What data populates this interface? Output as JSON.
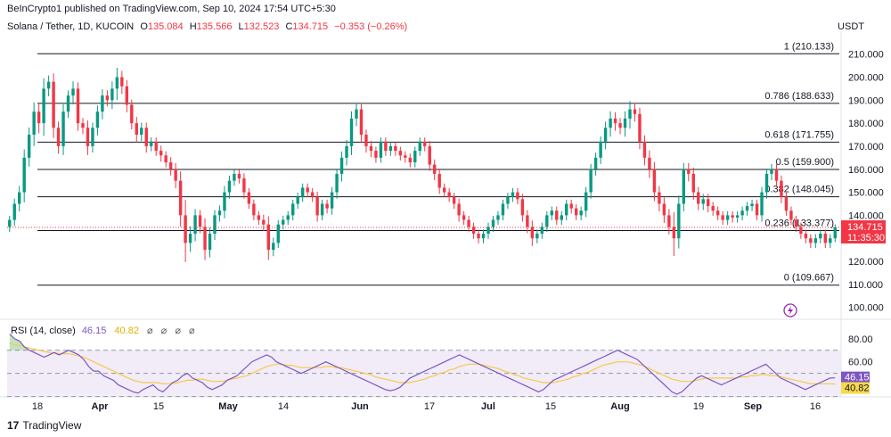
{
  "header": {
    "published": "BeInCrypto1 published on TradingView.com, Sep 10, 2024 17:54 UTC+5:30",
    "symbol": "Solana / Tether, 1D, KUCOIN",
    "o_label": "O",
    "o_value": "135.084",
    "h_label": "H",
    "h_value": "135.566",
    "l_label": "L",
    "l_value": "132.523",
    "c_label": "C",
    "c_value": "134.715",
    "change": "−0.353 (−0.26%)",
    "currency": "USDT"
  },
  "rsi_legend": {
    "label": "RSI (14, close)",
    "rsi_value": "46.15",
    "ma_value": "40.82",
    "icons": "⌀ ⌀ ⌀ ⌀"
  },
  "footer": {
    "logo_text": "TradingView",
    "logo_mark": "17"
  },
  "chart_data": [
    {
      "type": "candlestick",
      "title": "Solana / Tether, 1D, KUCOIN",
      "ylim": [
        96,
        218
      ],
      "y_ticks": [
        100,
        110,
        120,
        130,
        140,
        150,
        160,
        170,
        180,
        190,
        200,
        210
      ],
      "x_ticks": [
        "18",
        "Apr",
        "15",
        "May",
        "14",
        "Jun",
        "17",
        "Jul",
        "15",
        "Aug",
        "19",
        "Sep",
        "16"
      ],
      "price_label": "134.715",
      "countdown_label": "11:35:30",
      "up_color": "#089981",
      "down_color": "#f23645",
      "fib_levels": [
        {
          "ratio": "1",
          "value": 210.133,
          "label": "1 (210.133)"
        },
        {
          "ratio": "0.786",
          "value": 188.633,
          "label": "0.786 (188.633)"
        },
        {
          "ratio": "0.618",
          "value": 171.755,
          "label": "0.618 (171.755)"
        },
        {
          "ratio": "0.5",
          "value": 159.9,
          "label": "0.5 (159.900)"
        },
        {
          "ratio": "0.382",
          "value": 148.045,
          "label": "0.382 (148.045)"
        },
        {
          "ratio": "0.236",
          "value": 133.377,
          "label": "0.236 (133.377)"
        },
        {
          "ratio": "0",
          "value": 109.667,
          "label": "0 (109.667)"
        }
      ],
      "closes": [
        138,
        145,
        150,
        165,
        175,
        185,
        180,
        195,
        198,
        178,
        170,
        185,
        192,
        195,
        180,
        178,
        170,
        178,
        185,
        192,
        190,
        195,
        200,
        196,
        188,
        180,
        175,
        178,
        170,
        172,
        168,
        166,
        163,
        160,
        155,
        140,
        128,
        132,
        140,
        135,
        125,
        132,
        140,
        142,
        150,
        155,
        158,
        156,
        150,
        145,
        140,
        138,
        136,
        125,
        128,
        136,
        138,
        140,
        145,
        148,
        152,
        150,
        148,
        140,
        145,
        143,
        150,
        158,
        165,
        170,
        182,
        186,
        175,
        170,
        168,
        165,
        172,
        168,
        170,
        168,
        166,
        165,
        163,
        168,
        172,
        170,
        162,
        158,
        152,
        150,
        148,
        145,
        140,
        138,
        135,
        132,
        130,
        132,
        135,
        138,
        140,
        145,
        148,
        150,
        147,
        140,
        135,
        130,
        132,
        135,
        140,
        142,
        138,
        140,
        145,
        143,
        140,
        142,
        150,
        160,
        165,
        172,
        178,
        182,
        180,
        178,
        182,
        186,
        184,
        172,
        165,
        160,
        150,
        145,
        140,
        135,
        130,
        145,
        160,
        158,
        150,
        145,
        147,
        144,
        142,
        140,
        138,
        140,
        139,
        140,
        142,
        144,
        145,
        140,
        150,
        158,
        160,
        155,
        148,
        142,
        138,
        135,
        132,
        130,
        128,
        130,
        132,
        128,
        130,
        134.715
      ],
      "volatility": [
        4,
        5,
        6,
        8,
        7,
        9,
        8,
        10,
        6,
        8,
        6,
        7,
        5,
        7,
        6,
        5,
        7,
        5,
        6,
        6,
        5,
        7,
        9,
        6,
        6,
        5,
        6,
        5,
        5,
        4,
        4,
        5,
        4,
        5,
        6,
        9,
        15,
        7,
        6,
        5,
        8,
        6,
        5,
        5,
        6,
        5,
        4,
        4,
        5,
        4,
        4,
        4,
        5,
        8,
        5,
        4,
        4,
        4,
        4,
        4,
        4,
        4,
        4,
        5,
        4,
        4,
        5,
        5,
        6,
        6,
        7,
        6,
        6,
        5,
        5,
        4,
        4,
        4,
        4,
        4,
        4,
        4,
        4,
        4,
        4,
        4,
        5,
        5,
        5,
        4,
        4,
        4,
        5,
        4,
        4,
        4,
        4,
        4,
        4,
        4,
        4,
        4,
        4,
        4,
        4,
        5,
        5,
        6,
        4,
        4,
        4,
        4,
        4,
        4,
        4,
        4,
        4,
        4,
        5,
        5,
        5,
        5,
        6,
        7,
        6,
        5,
        7,
        8,
        6,
        6,
        6,
        7,
        7,
        6,
        6,
        6,
        14,
        8,
        6,
        6,
        6,
        5,
        5,
        5,
        4,
        4,
        4,
        4,
        4,
        4,
        4,
        4,
        4,
        4,
        5,
        5,
        5,
        5,
        5,
        4,
        4,
        4,
        4,
        4,
        4,
        4,
        4,
        4,
        4,
        3
      ]
    },
    {
      "type": "line",
      "title": "RSI (14, close)",
      "ylim": [
        32,
        86
      ],
      "y_ticks": [
        80,
        60
      ],
      "levels": [
        70,
        50,
        30
      ],
      "series": [
        {
          "color": "#7e57c2",
          "values": [
            84,
            80,
            78,
            73,
            70,
            68,
            66,
            64,
            66,
            68,
            66,
            68,
            70,
            68,
            66,
            62,
            56,
            52,
            52,
            48,
            46,
            44,
            40,
            38,
            36,
            34,
            33,
            36,
            38,
            40,
            36,
            34,
            38,
            42,
            44,
            48,
            50,
            46,
            44,
            42,
            38,
            36,
            38,
            40,
            44,
            46,
            48,
            52,
            56,
            60,
            62,
            64,
            66,
            64,
            60,
            58,
            56,
            54,
            52,
            50,
            52,
            54,
            56,
            58,
            60,
            58,
            56,
            54,
            52,
            50,
            48,
            46,
            44,
            42,
            40,
            38,
            36,
            35,
            36,
            38,
            42,
            46,
            48,
            50,
            52,
            54,
            56,
            58,
            60,
            62,
            64,
            66,
            64,
            62,
            60,
            58,
            56,
            54,
            52,
            50,
            48,
            46,
            44,
            42,
            40,
            38,
            36,
            34,
            36,
            40,
            44,
            46,
            48,
            50,
            52,
            54,
            56,
            58,
            60,
            62,
            64,
            66,
            68,
            70,
            68,
            66,
            64,
            62,
            58,
            54,
            50,
            46,
            42,
            38,
            34,
            32,
            34,
            38,
            42,
            46,
            48,
            46,
            44,
            42,
            40,
            42,
            44,
            46,
            48,
            50,
            52,
            54,
            56,
            58,
            54,
            50,
            46,
            44,
            42,
            40,
            38,
            36,
            38,
            40,
            42,
            44,
            46,
            46.15
          ]
        },
        {
          "color": "#f7c948",
          "values": [
            76,
            75,
            74,
            73,
            72,
            71,
            70,
            69,
            68,
            68,
            67,
            67,
            67,
            66,
            65,
            64,
            62,
            60,
            58,
            56,
            54,
            52,
            50,
            48,
            46,
            44,
            43,
            42,
            42,
            42,
            42,
            41,
            41,
            41,
            42,
            43,
            44,
            44,
            45,
            45,
            44,
            43,
            43,
            43,
            44,
            45,
            46,
            47,
            48,
            50,
            52,
            54,
            56,
            57,
            58,
            58,
            57,
            57,
            56,
            55,
            55,
            55,
            55,
            55,
            56,
            56,
            55,
            55,
            54,
            53,
            52,
            51,
            50,
            49,
            47,
            46,
            45,
            44,
            43,
            42,
            42,
            42,
            43,
            44,
            45,
            47,
            48,
            50,
            51,
            53,
            54,
            56,
            57,
            58,
            58,
            58,
            57,
            56,
            55,
            54,
            52,
            51,
            49,
            48,
            46,
            45,
            44,
            43,
            42,
            42,
            42,
            43,
            44,
            45,
            47,
            48,
            50,
            51,
            53,
            55,
            57,
            58,
            59,
            60,
            60,
            60,
            59,
            58,
            57,
            55,
            53,
            51,
            49,
            47,
            45,
            44,
            43,
            43,
            43,
            44,
            45,
            46,
            46,
            46,
            46,
            46,
            46,
            46,
            47,
            47,
            48,
            48,
            49,
            49,
            48,
            48,
            47,
            46,
            45,
            44,
            43,
            42,
            41,
            41,
            41,
            41,
            41,
            40.82
          ]
        }
      ],
      "rsi_label": "46.15",
      "ma_label": "40.82"
    }
  ]
}
